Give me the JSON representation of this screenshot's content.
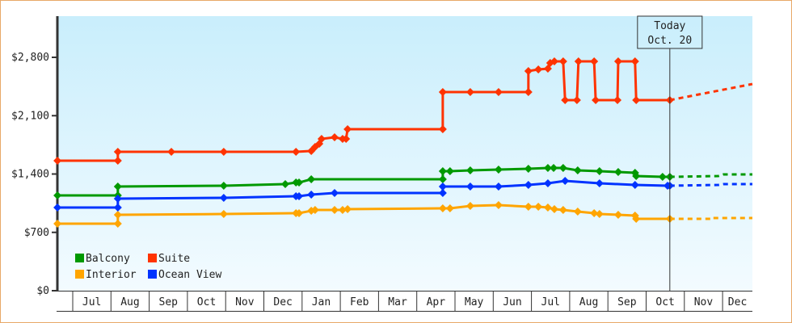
{
  "chart_data": {
    "type": "line",
    "title": "",
    "xlabel": "",
    "ylabel": "",
    "x_unit": "month index (0 = start of first Jul)",
    "ylim": [
      0,
      3500
    ],
    "yticks": [
      0,
      700,
      1400,
      2100,
      2800
    ],
    "ytick_labels": [
      "$0",
      "$700",
      "$1,400",
      "$2,100",
      "$2,800"
    ],
    "month_labels": [
      "Jul",
      "Aug",
      "Sep",
      "Oct",
      "Nov",
      "Dec",
      "Jan",
      "Feb",
      "Mar",
      "Apr",
      "May",
      "Jun",
      "Jul",
      "Aug",
      "Sep",
      "Oct",
      "Nov",
      "Dec"
    ],
    "xlim": [
      -0.4,
      17.78
    ],
    "today": {
      "line1": "Today",
      "line2": "Oct. 20",
      "x": 15.62
    },
    "legend_position": "bottom-left",
    "series": [
      {
        "name": "Balcony",
        "color": "#009900",
        "points": [
          [
            -0.4,
            1143
          ],
          [
            1.18,
            1143
          ],
          [
            1.18,
            1250
          ],
          [
            3.95,
            1260
          ],
          [
            5.56,
            1279
          ],
          [
            5.84,
            1298
          ],
          [
            5.92,
            1298
          ],
          [
            6.24,
            1337
          ],
          [
            9.68,
            1337
          ],
          [
            9.68,
            1434
          ],
          [
            9.87,
            1434
          ],
          [
            10.4,
            1444
          ],
          [
            11.14,
            1453
          ],
          [
            11.92,
            1463
          ],
          [
            12.43,
            1473
          ],
          [
            12.58,
            1473
          ],
          [
            12.83,
            1473
          ],
          [
            13.21,
            1444
          ],
          [
            13.78,
            1434
          ],
          [
            14.27,
            1424
          ],
          [
            14.71,
            1415
          ],
          [
            14.74,
            1376
          ],
          [
            15.43,
            1366
          ],
          [
            15.62,
            1366
          ]
        ],
        "forecast": [
          [
            15.62,
            1366
          ],
          [
            16.89,
            1376
          ],
          [
            17.02,
            1395
          ],
          [
            17.78,
            1395
          ]
        ]
      },
      {
        "name": "Suite",
        "color": "#ff3300",
        "points": [
          [
            -0.4,
            1560
          ],
          [
            1.18,
            1560
          ],
          [
            1.18,
            1667
          ],
          [
            2.58,
            1667
          ],
          [
            3.95,
            1667
          ],
          [
            5.84,
            1667
          ],
          [
            6.24,
            1676
          ],
          [
            6.34,
            1725
          ],
          [
            6.45,
            1763
          ],
          [
            6.51,
            1822
          ],
          [
            6.85,
            1841
          ],
          [
            7.06,
            1822
          ],
          [
            7.15,
            1822
          ],
          [
            7.19,
            1938
          ],
          [
            9.68,
            1938
          ],
          [
            9.68,
            2383
          ],
          [
            10.4,
            2383
          ],
          [
            11.14,
            2383
          ],
          [
            11.92,
            2383
          ],
          [
            11.92,
            2635
          ],
          [
            12.18,
            2655
          ],
          [
            12.43,
            2664
          ],
          [
            12.49,
            2732
          ],
          [
            12.6,
            2752
          ],
          [
            12.83,
            2752
          ],
          [
            12.88,
            2287
          ],
          [
            13.19,
            2287
          ],
          [
            13.23,
            2752
          ],
          [
            13.64,
            2752
          ],
          [
            13.68,
            2287
          ],
          [
            14.25,
            2287
          ],
          [
            14.27,
            2752
          ],
          [
            14.71,
            2752
          ],
          [
            14.74,
            2287
          ],
          [
            15.62,
            2287
          ]
        ],
        "forecast": [
          [
            15.62,
            2287
          ],
          [
            17.78,
            2480
          ]
        ]
      },
      {
        "name": "Interior",
        "color": "#ffa500",
        "points": [
          [
            -0.4,
            804
          ],
          [
            1.18,
            804
          ],
          [
            1.18,
            911
          ],
          [
            3.95,
            920
          ],
          [
            5.84,
            930
          ],
          [
            5.92,
            930
          ],
          [
            6.24,
            959
          ],
          [
            6.34,
            969
          ],
          [
            6.85,
            969
          ],
          [
            7.06,
            969
          ],
          [
            7.19,
            979
          ],
          [
            9.68,
            988
          ],
          [
            9.87,
            988
          ],
          [
            10.4,
            1017
          ],
          [
            11.14,
            1027
          ],
          [
            11.92,
            1008
          ],
          [
            12.18,
            1008
          ],
          [
            12.43,
            998
          ],
          [
            12.6,
            979
          ],
          [
            12.83,
            969
          ],
          [
            13.21,
            950
          ],
          [
            13.64,
            930
          ],
          [
            13.78,
            920
          ],
          [
            14.27,
            911
          ],
          [
            14.71,
            901
          ],
          [
            14.74,
            862
          ],
          [
            15.62,
            862
          ]
        ],
        "forecast": [
          [
            15.62,
            862
          ],
          [
            16.7,
            862
          ],
          [
            16.7,
            872
          ],
          [
            17.78,
            872
          ]
        ]
      },
      {
        "name": "Ocean View",
        "color": "#0033ff",
        "points": [
          [
            -0.4,
            998
          ],
          [
            1.18,
            998
          ],
          [
            1.18,
            1105
          ],
          [
            3.95,
            1114
          ],
          [
            5.84,
            1134
          ],
          [
            5.92,
            1134
          ],
          [
            6.24,
            1153
          ],
          [
            6.85,
            1172
          ],
          [
            9.68,
            1172
          ],
          [
            9.68,
            1250
          ],
          [
            10.4,
            1250
          ],
          [
            11.14,
            1250
          ],
          [
            11.92,
            1269
          ],
          [
            12.43,
            1289
          ],
          [
            12.88,
            1318
          ],
          [
            13.78,
            1289
          ],
          [
            14.71,
            1269
          ],
          [
            15.56,
            1260
          ],
          [
            15.62,
            1260
          ]
        ],
        "forecast": [
          [
            15.62,
            1260
          ],
          [
            16.89,
            1269
          ],
          [
            17.02,
            1279
          ],
          [
            17.78,
            1279
          ]
        ]
      }
    ]
  }
}
